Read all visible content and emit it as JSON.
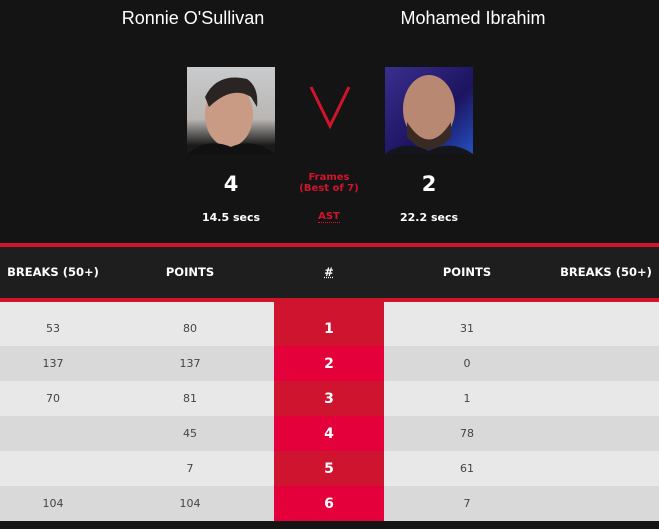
{
  "players": [
    {
      "name": "Ronnie O'Sullivan",
      "frames_won": "4",
      "avg_shot_time": "14.5 secs"
    },
    {
      "name": "Mohamed Ibrahim",
      "frames_won": "2",
      "avg_shot_time": "22.2 secs"
    }
  ],
  "versus": "V",
  "frames_label": "Frames",
  "best_of": "(Best of 7)",
  "ast_label": "AST",
  "table": {
    "headers": [
      "BREAKS (50+)",
      "POINTS",
      "#",
      "POINTS",
      "BREAKS (50+)"
    ],
    "rows": [
      {
        "p1_breaks": "53",
        "p1_points": "80",
        "frame": "1",
        "p2_points": "31",
        "p2_breaks": ""
      },
      {
        "p1_breaks": "137",
        "p1_points": "137",
        "frame": "2",
        "p2_points": "0",
        "p2_breaks": ""
      },
      {
        "p1_breaks": "70",
        "p1_points": "81",
        "frame": "3",
        "p2_points": "1",
        "p2_breaks": ""
      },
      {
        "p1_breaks": "",
        "p1_points": "45",
        "frame": "4",
        "p2_points": "78",
        "p2_breaks": ""
      },
      {
        "p1_breaks": "",
        "p1_points": "7",
        "frame": "5",
        "p2_points": "61",
        "p2_breaks": ""
      },
      {
        "p1_breaks": "104",
        "p1_points": "104",
        "frame": "6",
        "p2_points": "7",
        "p2_breaks": ""
      }
    ]
  },
  "colors": {
    "accent": "#d0142c",
    "accent_alt": "#e4003a",
    "background": "#141414"
  }
}
